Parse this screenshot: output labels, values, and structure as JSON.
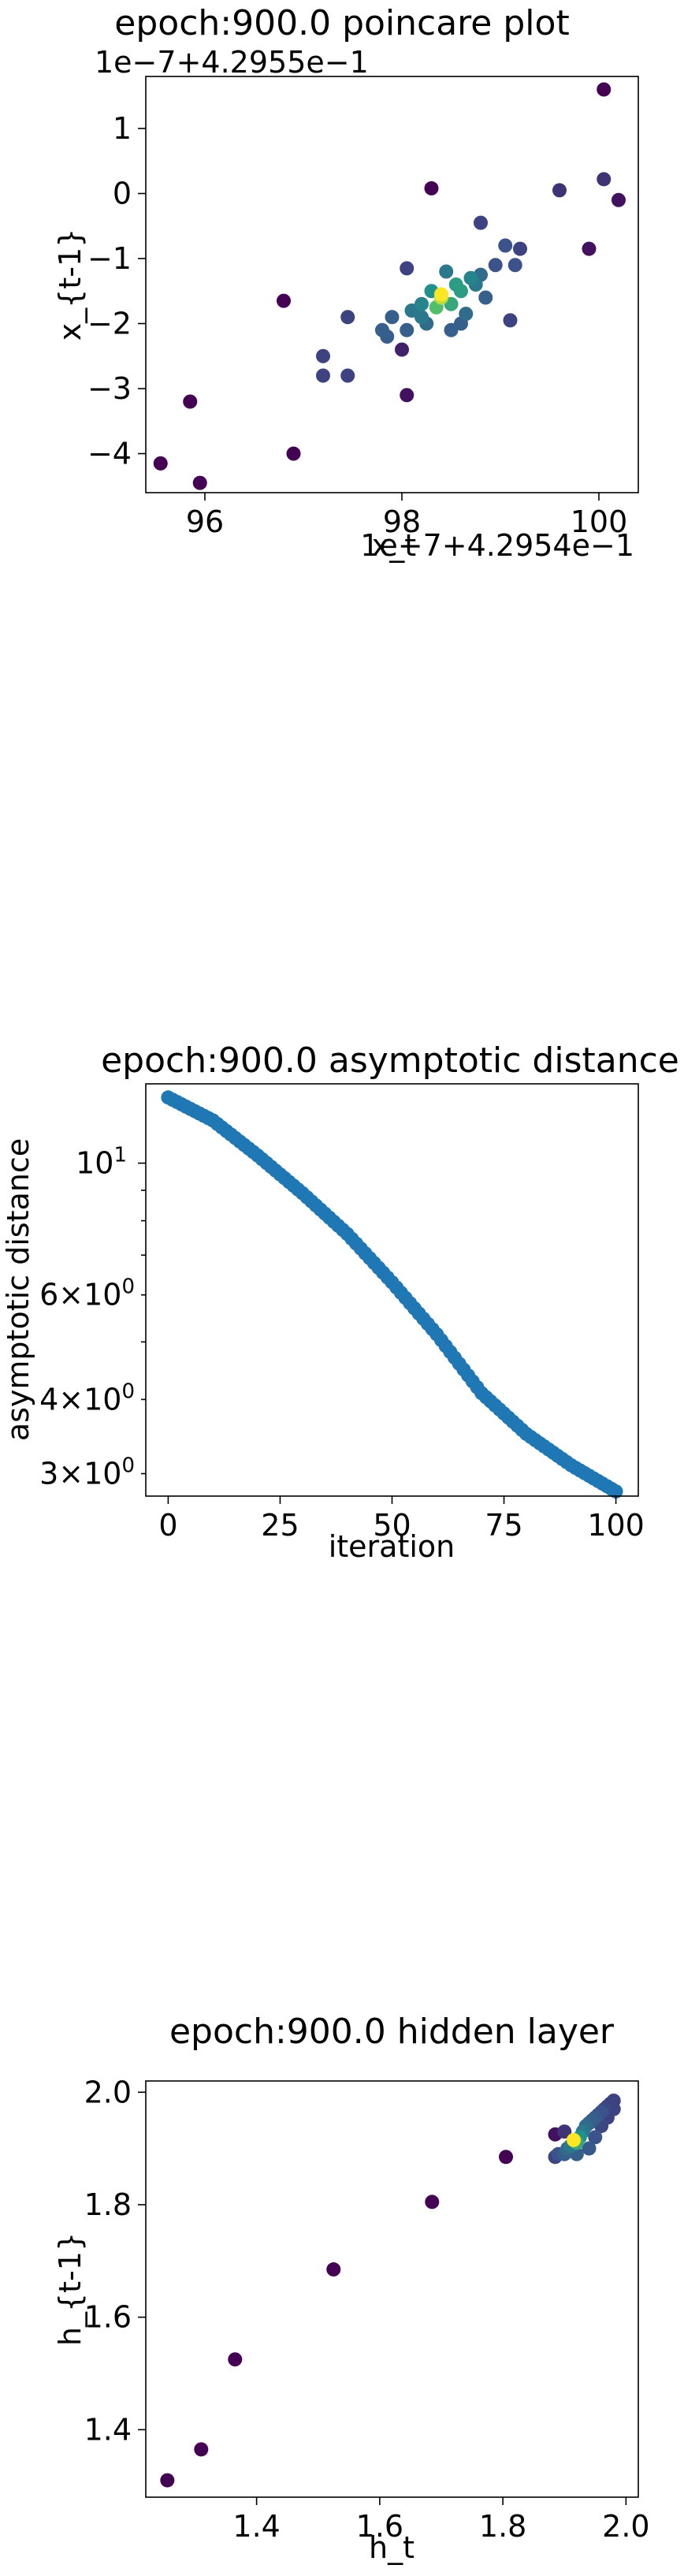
{
  "chart_data": [
    {
      "type": "scatter",
      "title": "epoch:900.0 poincare plot",
      "xlabel": "x_t",
      "ylabel": "x_{t-1}",
      "x_offset_text": "1e−7+4.2954e−1",
      "y_offset_text": "1e−7+4.2955e−1",
      "xlim": [
        95.4,
        100.4
      ],
      "ylim": [
        -4.6,
        1.8
      ],
      "x_ticks": [
        96,
        98,
        100
      ],
      "y_ticks": [
        -4,
        -3,
        -2,
        -1,
        0,
        1
      ],
      "x_tick_labels": [
        "96",
        "98",
        "100"
      ],
      "y_tick_labels": [
        "−4",
        "−3",
        "−2",
        "−1",
        "0",
        "1"
      ],
      "grid": false,
      "colormap": "viridis (point density)",
      "points": [
        {
          "x": 95.55,
          "y": -4.15,
          "d": 0.0
        },
        {
          "x": 95.85,
          "y": -3.2,
          "d": 0.0
        },
        {
          "x": 95.95,
          "y": -4.45,
          "d": 0.0
        },
        {
          "x": 96.8,
          "y": -1.65,
          "d": 0.0
        },
        {
          "x": 96.9,
          "y": -4.0,
          "d": 0.0
        },
        {
          "x": 97.2,
          "y": -2.5,
          "d": 0.2
        },
        {
          "x": 97.2,
          "y": -2.8,
          "d": 0.2
        },
        {
          "x": 97.45,
          "y": -2.8,
          "d": 0.2
        },
        {
          "x": 97.45,
          "y": -1.9,
          "d": 0.2
        },
        {
          "x": 97.8,
          "y": -2.1,
          "d": 0.3
        },
        {
          "x": 97.85,
          "y": -2.2,
          "d": 0.3
        },
        {
          "x": 97.9,
          "y": -1.9,
          "d": 0.3
        },
        {
          "x": 98.0,
          "y": -2.4,
          "d": 0.1
        },
        {
          "x": 98.05,
          "y": -3.1,
          "d": 0.05
        },
        {
          "x": 98.05,
          "y": -2.1,
          "d": 0.3
        },
        {
          "x": 98.05,
          "y": -1.15,
          "d": 0.2
        },
        {
          "x": 98.1,
          "y": -1.8,
          "d": 0.4
        },
        {
          "x": 98.2,
          "y": -1.7,
          "d": 0.45
        },
        {
          "x": 98.2,
          "y": -1.9,
          "d": 0.4
        },
        {
          "x": 98.25,
          "y": -2.0,
          "d": 0.35
        },
        {
          "x": 98.3,
          "y": 0.08,
          "d": 0.0
        },
        {
          "x": 98.3,
          "y": -1.5,
          "d": 0.5
        },
        {
          "x": 98.35,
          "y": -1.75,
          "d": 0.7
        },
        {
          "x": 98.4,
          "y": -1.6,
          "d": 0.9
        },
        {
          "x": 98.4,
          "y": -1.55,
          "d": 1.0
        },
        {
          "x": 98.45,
          "y": -1.2,
          "d": 0.4
        },
        {
          "x": 98.5,
          "y": -1.7,
          "d": 0.6
        },
        {
          "x": 98.5,
          "y": -2.1,
          "d": 0.3
        },
        {
          "x": 98.55,
          "y": -1.4,
          "d": 0.55
        },
        {
          "x": 98.6,
          "y": -1.5,
          "d": 0.55
        },
        {
          "x": 98.6,
          "y": -2.0,
          "d": 0.3
        },
        {
          "x": 98.65,
          "y": -1.85,
          "d": 0.35
        },
        {
          "x": 98.7,
          "y": -1.3,
          "d": 0.45
        },
        {
          "x": 98.75,
          "y": -1.4,
          "d": 0.4
        },
        {
          "x": 98.8,
          "y": -1.25,
          "d": 0.35
        },
        {
          "x": 98.8,
          "y": -0.45,
          "d": 0.2
        },
        {
          "x": 98.85,
          "y": -1.6,
          "d": 0.3
        },
        {
          "x": 98.95,
          "y": -1.1,
          "d": 0.25
        },
        {
          "x": 99.05,
          "y": -0.8,
          "d": 0.25
        },
        {
          "x": 99.1,
          "y": -1.95,
          "d": 0.2
        },
        {
          "x": 99.15,
          "y": -1.1,
          "d": 0.25
        },
        {
          "x": 99.2,
          "y": -0.85,
          "d": 0.2
        },
        {
          "x": 99.6,
          "y": 0.05,
          "d": 0.15
        },
        {
          "x": 99.9,
          "y": -0.85,
          "d": 0.05
        },
        {
          "x": 100.05,
          "y": 0.22,
          "d": 0.15
        },
        {
          "x": 100.05,
          "y": 1.6,
          "d": 0.0
        },
        {
          "x": 100.2,
          "y": -0.1,
          "d": 0.05
        }
      ]
    },
    {
      "type": "scatter",
      "title": "epoch:900.0 asymptotic distance",
      "xlabel": "iteration",
      "ylabel": "asymptotic distance",
      "xlim": [
        -5,
        105
      ],
      "ylim": [
        2.75,
        13.6
      ],
      "y_scale": "log",
      "x_ticks": [
        0,
        25,
        50,
        75,
        100
      ],
      "x_tick_labels": [
        "0",
        "25",
        "50",
        "75",
        "100"
      ],
      "y_major_ticks": [
        10
      ],
      "y_major_tick_labels": [
        "10"
      ],
      "y_labeled_minor_ticks": [
        3,
        4,
        6
      ],
      "y_minor_tick_labels": [
        "3",
        "4",
        "6"
      ],
      "y_minor_ticks": [
        3,
        4,
        5,
        6,
        7,
        8,
        9
      ],
      "grid": false,
      "color": "#1f77b4",
      "curve_model": {
        "n_points": 101,
        "start_value": 12.9,
        "end_value": 2.8,
        "knots_x": [
          0,
          10,
          20,
          30,
          40,
          50,
          60,
          70,
          80,
          90,
          100
        ],
        "knots_y": [
          12.9,
          11.8,
          10.3,
          8.9,
          7.6,
          6.3,
          5.15,
          4.1,
          3.5,
          3.1,
          2.8
        ]
      }
    },
    {
      "type": "scatter",
      "title": "epoch:900.0 hidden layer",
      "xlabel": "h_t",
      "ylabel": "h_{t-1}",
      "xlim": [
        1.22,
        2.02
      ],
      "ylim": [
        1.28,
        2.02
      ],
      "x_ticks": [
        1.4,
        1.6,
        1.8,
        2.0
      ],
      "y_ticks": [
        1.4,
        1.6,
        1.8,
        2.0
      ],
      "x_tick_labels": [
        "1.4",
        "1.6",
        "1.8",
        "2.0"
      ],
      "y_tick_labels": [
        "1.4",
        "1.6",
        "1.8",
        "2.0"
      ],
      "grid": false,
      "colormap": "viridis (point density)",
      "points": [
        {
          "x": 1.255,
          "y": 1.31,
          "d": 0.0
        },
        {
          "x": 1.31,
          "y": 1.365,
          "d": 0.0
        },
        {
          "x": 1.365,
          "y": 1.525,
          "d": 0.0
        },
        {
          "x": 1.525,
          "y": 1.685,
          "d": 0.0
        },
        {
          "x": 1.685,
          "y": 1.805,
          "d": 0.0
        },
        {
          "x": 1.805,
          "y": 1.885,
          "d": 0.0
        },
        {
          "x": 1.885,
          "y": 1.925,
          "d": 0.05
        },
        {
          "x": 1.885,
          "y": 1.885,
          "d": 0.2
        },
        {
          "x": 1.89,
          "y": 1.89,
          "d": 0.25
        },
        {
          "x": 1.9,
          "y": 1.89,
          "d": 0.3
        },
        {
          "x": 1.905,
          "y": 1.9,
          "d": 0.35
        },
        {
          "x": 1.91,
          "y": 1.905,
          "d": 0.4
        },
        {
          "x": 1.915,
          "y": 1.915,
          "d": 1.0
        },
        {
          "x": 1.92,
          "y": 1.91,
          "d": 0.6
        },
        {
          "x": 1.925,
          "y": 1.92,
          "d": 0.5
        },
        {
          "x": 1.93,
          "y": 1.93,
          "d": 0.4
        },
        {
          "x": 1.935,
          "y": 1.94,
          "d": 0.35
        },
        {
          "x": 1.94,
          "y": 1.945,
          "d": 0.3
        },
        {
          "x": 1.945,
          "y": 1.95,
          "d": 0.3
        },
        {
          "x": 1.95,
          "y": 1.955,
          "d": 0.28
        },
        {
          "x": 1.955,
          "y": 1.96,
          "d": 0.25
        },
        {
          "x": 1.96,
          "y": 1.965,
          "d": 0.25
        },
        {
          "x": 1.965,
          "y": 1.97,
          "d": 0.22
        },
        {
          "x": 1.97,
          "y": 1.975,
          "d": 0.2
        },
        {
          "x": 1.975,
          "y": 1.98,
          "d": 0.2
        },
        {
          "x": 1.98,
          "y": 1.985,
          "d": 0.2
        },
        {
          "x": 1.92,
          "y": 1.89,
          "d": 0.3
        },
        {
          "x": 1.94,
          "y": 1.9,
          "d": 0.28
        },
        {
          "x": 1.95,
          "y": 1.92,
          "d": 0.25
        },
        {
          "x": 1.96,
          "y": 1.94,
          "d": 0.22
        },
        {
          "x": 1.97,
          "y": 1.955,
          "d": 0.2
        },
        {
          "x": 1.98,
          "y": 1.97,
          "d": 0.2
        },
        {
          "x": 1.9,
          "y": 1.93,
          "d": 0.15
        }
      ]
    }
  ]
}
